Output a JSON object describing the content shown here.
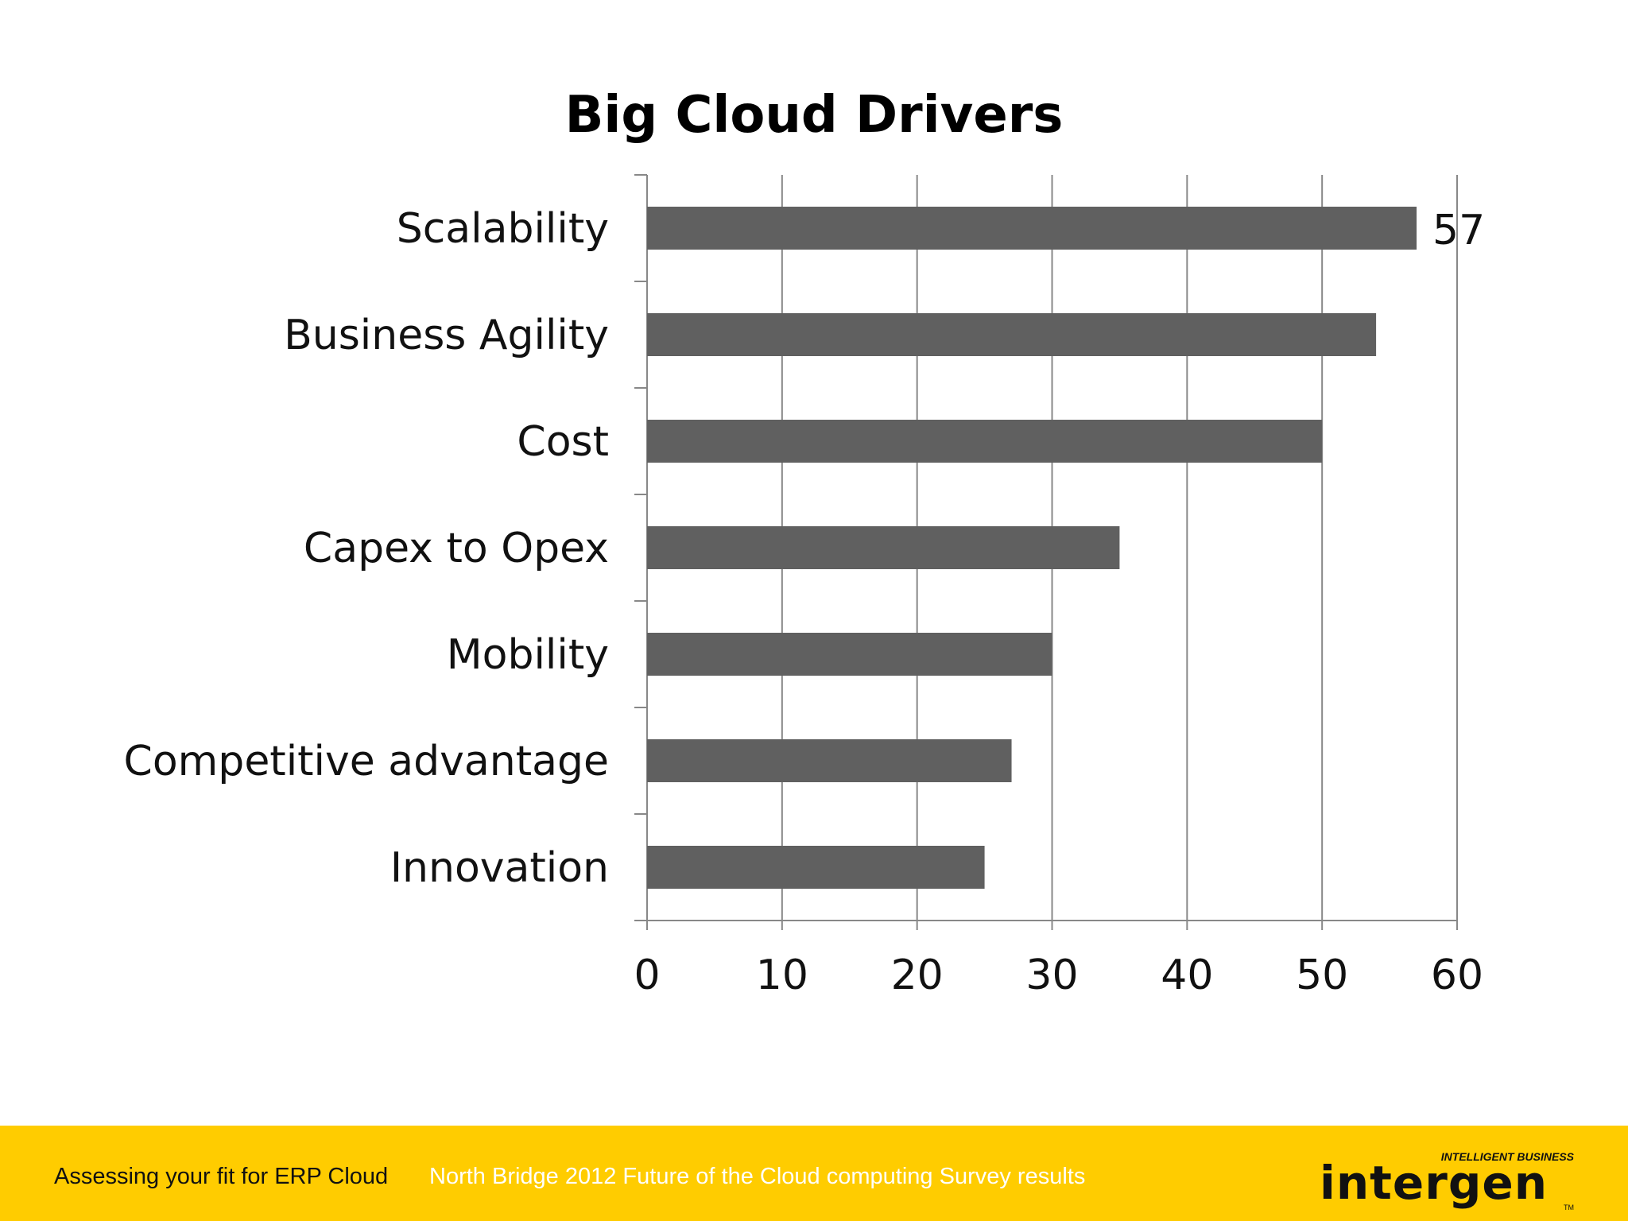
{
  "slide": {
    "footer_left": "Assessing your fit for ERP Cloud",
    "footer_source": "North Bridge 2012 Future of the Cloud computing Survey results",
    "logo_name": "intergen",
    "logo_tagline": "INTELLIGENT BUSINESS",
    "logo_tm": "TM",
    "footer_color": "#ffcc00"
  },
  "chart_data": {
    "type": "bar",
    "orientation": "horizontal",
    "title": "Big Cloud Drivers",
    "categories": [
      "Scalability",
      "Business Agility",
      "Cost",
      "Capex to Opex",
      "Mobility",
      "Competitive advantage",
      "Innovation"
    ],
    "values": [
      57,
      54,
      50,
      35,
      30,
      27,
      25
    ],
    "data_labels": {
      "Scalability": "57"
    },
    "xlim": [
      0,
      60
    ],
    "xticks": [
      "0",
      "10",
      "20",
      "30",
      "40",
      "50",
      "60"
    ],
    "grid": true,
    "bar_color": "#606060",
    "grid_color": "#888888"
  }
}
